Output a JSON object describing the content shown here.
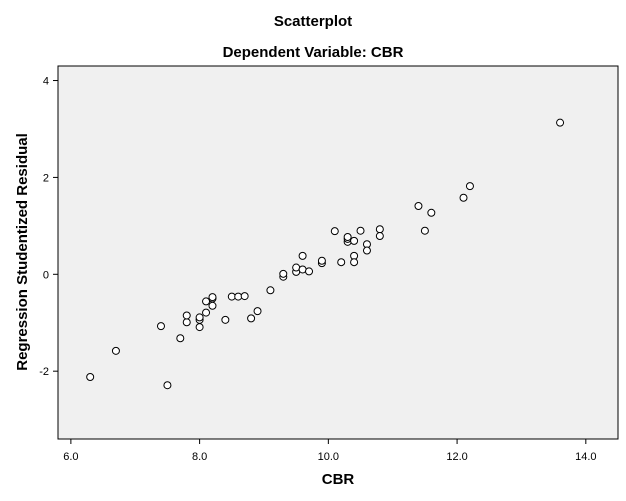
{
  "chart_data": {
    "type": "scatter",
    "title": "Scatterplot",
    "subtitle": "Dependent Variable: CBR",
    "xlabel": "CBR",
    "ylabel": "Regression Studentized Residual",
    "xlim": [
      5.8,
      14.5
    ],
    "ylim": [
      -3.4,
      4.3
    ],
    "x_ticks": [
      6,
      8,
      10,
      12,
      14
    ],
    "x_tick_labels": [
      "6.0",
      "8.0",
      "10.0",
      "12.0",
      "14.0"
    ],
    "y_ticks": [
      -2,
      0,
      2,
      4
    ],
    "y_tick_labels": [
      "-2",
      "0",
      "2",
      "4"
    ],
    "grid": false,
    "legend": "none",
    "colors": {
      "plot_background": "#f0f0f0",
      "marker_stroke": "#000000",
      "marker_fill": "#ffffff"
    },
    "points": [
      {
        "x": 6.3,
        "y": -2.12
      },
      {
        "x": 6.7,
        "y": -1.58
      },
      {
        "x": 7.4,
        "y": -1.07
      },
      {
        "x": 7.5,
        "y": -2.29
      },
      {
        "x": 7.7,
        "y": -1.32
      },
      {
        "x": 7.8,
        "y": -0.99
      },
      {
        "x": 7.8,
        "y": -0.85
      },
      {
        "x": 8.0,
        "y": -1.09
      },
      {
        "x": 8.0,
        "y": -0.94
      },
      {
        "x": 8.0,
        "y": -0.89
      },
      {
        "x": 8.1,
        "y": -0.79
      },
      {
        "x": 8.1,
        "y": -0.56
      },
      {
        "x": 8.2,
        "y": -0.65
      },
      {
        "x": 8.2,
        "y": -0.5
      },
      {
        "x": 8.2,
        "y": -0.47
      },
      {
        "x": 8.4,
        "y": -0.94
      },
      {
        "x": 8.5,
        "y": -0.46
      },
      {
        "x": 8.6,
        "y": -0.46
      },
      {
        "x": 8.7,
        "y": -0.45
      },
      {
        "x": 8.8,
        "y": -0.91
      },
      {
        "x": 8.9,
        "y": -0.76
      },
      {
        "x": 9.1,
        "y": -0.33
      },
      {
        "x": 9.3,
        "y": -0.05
      },
      {
        "x": 9.3,
        "y": 0.01
      },
      {
        "x": 9.5,
        "y": 0.05
      },
      {
        "x": 9.5,
        "y": 0.14
      },
      {
        "x": 9.6,
        "y": 0.1
      },
      {
        "x": 9.6,
        "y": 0.38
      },
      {
        "x": 9.7,
        "y": 0.06
      },
      {
        "x": 9.9,
        "y": 0.23
      },
      {
        "x": 9.9,
        "y": 0.28
      },
      {
        "x": 10.1,
        "y": 0.89
      },
      {
        "x": 10.2,
        "y": 0.25
      },
      {
        "x": 10.3,
        "y": 0.67
      },
      {
        "x": 10.3,
        "y": 0.73
      },
      {
        "x": 10.3,
        "y": 0.77
      },
      {
        "x": 10.4,
        "y": 0.69
      },
      {
        "x": 10.4,
        "y": 0.38
      },
      {
        "x": 10.4,
        "y": 0.25
      },
      {
        "x": 10.5,
        "y": 0.9
      },
      {
        "x": 10.6,
        "y": 0.62
      },
      {
        "x": 10.6,
        "y": 0.49
      },
      {
        "x": 10.8,
        "y": 0.93
      },
      {
        "x": 10.8,
        "y": 0.79
      },
      {
        "x": 11.4,
        "y": 1.41
      },
      {
        "x": 11.5,
        "y": 0.9
      },
      {
        "x": 11.6,
        "y": 1.27
      },
      {
        "x": 12.1,
        "y": 1.58
      },
      {
        "x": 12.2,
        "y": 1.82
      },
      {
        "x": 13.6,
        "y": 3.13
      }
    ]
  }
}
